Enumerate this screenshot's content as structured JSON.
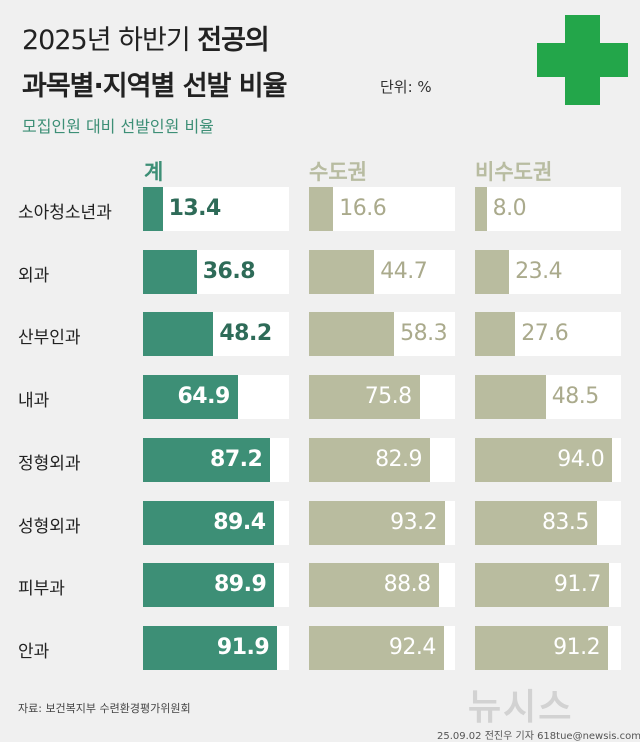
{
  "header": {
    "title_line1_light": "2025년 하반기 ",
    "title_line1_bold": "전공의",
    "title_line2": "과목별·지역별 선발 비율",
    "unit": "단위: %",
    "subtitle": "모집인원 대비 선발인원 비율"
  },
  "footer": {
    "source": "자료: 보건복지부 수련환경평가위원회",
    "credit": "25.09.02 전진우 기자 618tue@newsis.com",
    "logo": "뉴시스"
  },
  "colors": {
    "total": "#3d8f76",
    "regional": "#b9bc9f",
    "cross": "#23a64a"
  },
  "icon": "green-cross-icon",
  "chart_data": {
    "type": "bar",
    "orientation": "horizontal",
    "ylim": [
      0,
      100
    ],
    "categories": [
      "소아청소년과",
      "외과",
      "산부인과",
      "내과",
      "정형외과",
      "성형외과",
      "피부과",
      "안과"
    ],
    "series": [
      {
        "name": "계",
        "values": [
          13.4,
          36.8,
          48.2,
          64.9,
          87.2,
          89.4,
          89.9,
          91.9
        ]
      },
      {
        "name": "수도권",
        "values": [
          16.6,
          44.7,
          58.3,
          75.8,
          82.9,
          93.2,
          88.8,
          92.4
        ]
      },
      {
        "name": "비수도권",
        "values": [
          8.0,
          23.4,
          27.6,
          48.5,
          94.0,
          83.5,
          91.7,
          91.2
        ]
      }
    ]
  }
}
